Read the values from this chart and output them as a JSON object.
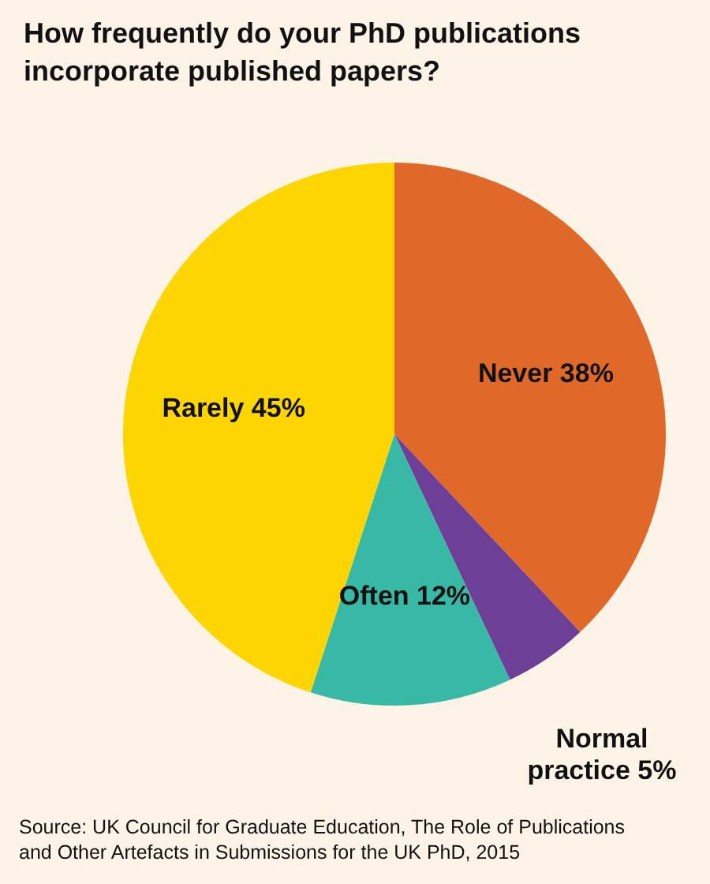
{
  "chart_data": {
    "type": "pie",
    "title": "How frequently do your PhD publications incorporate published papers?",
    "categories": [
      "Never",
      "Normal practice",
      "Often",
      "Rarely"
    ],
    "values": [
      38,
      5,
      12,
      45
    ],
    "colors": [
      "#e0692a",
      "#6e3f97",
      "#37b9a6",
      "#fdd500"
    ],
    "value_labels": [
      "38%",
      "5%",
      "12%",
      "45%"
    ],
    "annotations": [
      "Source: UK Council for Graduate Education, The Role of Publications and Other Artefacts in Submissions for the UK PhD, 2015"
    ]
  }
}
